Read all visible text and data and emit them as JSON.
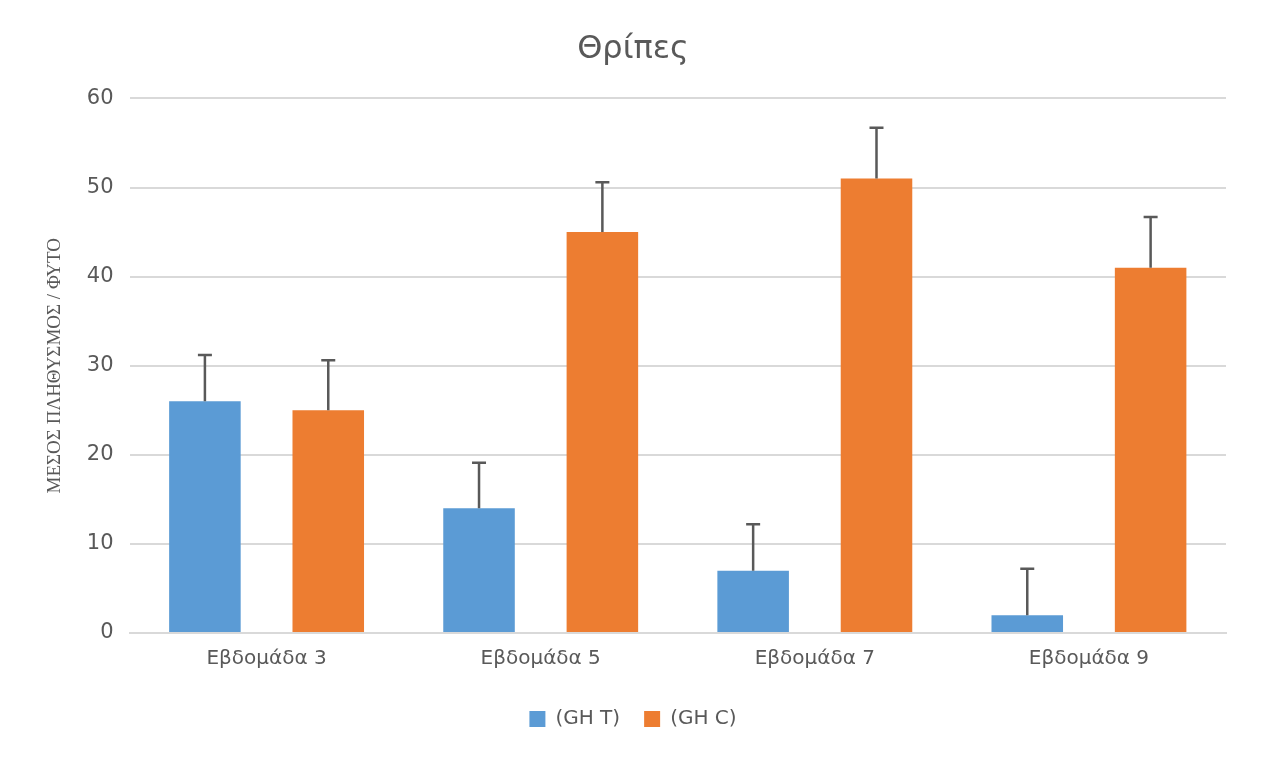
{
  "chart_data": {
    "type": "bar",
    "title": "Θρίπες",
    "ylabel": "ΜΕΣΟΣ ΠΛΗΘΥΣΜΟΣ / ΦΥΤΟ",
    "categories": [
      "Εβδομάδα 3",
      "Εβδομάδα 5",
      "Εβδομάδα 7",
      "Εβδομάδα 9"
    ],
    "series": [
      {
        "name": "(GH T)",
        "color": "#5b9bd5",
        "values": [
          26,
          14,
          7,
          2
        ],
        "errors": [
          [
            26,
            31.2
          ],
          [
            14,
            19.1
          ],
          [
            7,
            12.2
          ],
          [
            2,
            7.2
          ]
        ]
      },
      {
        "name": "(GH C)",
        "color": "#ed7d31",
        "values": [
          25,
          45,
          51,
          41
        ],
        "errors": [
          [
            25,
            30.6
          ],
          [
            45,
            50.6
          ],
          [
            51,
            56.7
          ],
          [
            41,
            46.7
          ]
        ]
      }
    ],
    "ylim": [
      0,
      60
    ],
    "yticks": [
      0,
      10,
      20,
      30,
      40,
      50,
      60
    ],
    "grid": "y",
    "legend": "bottom"
  }
}
